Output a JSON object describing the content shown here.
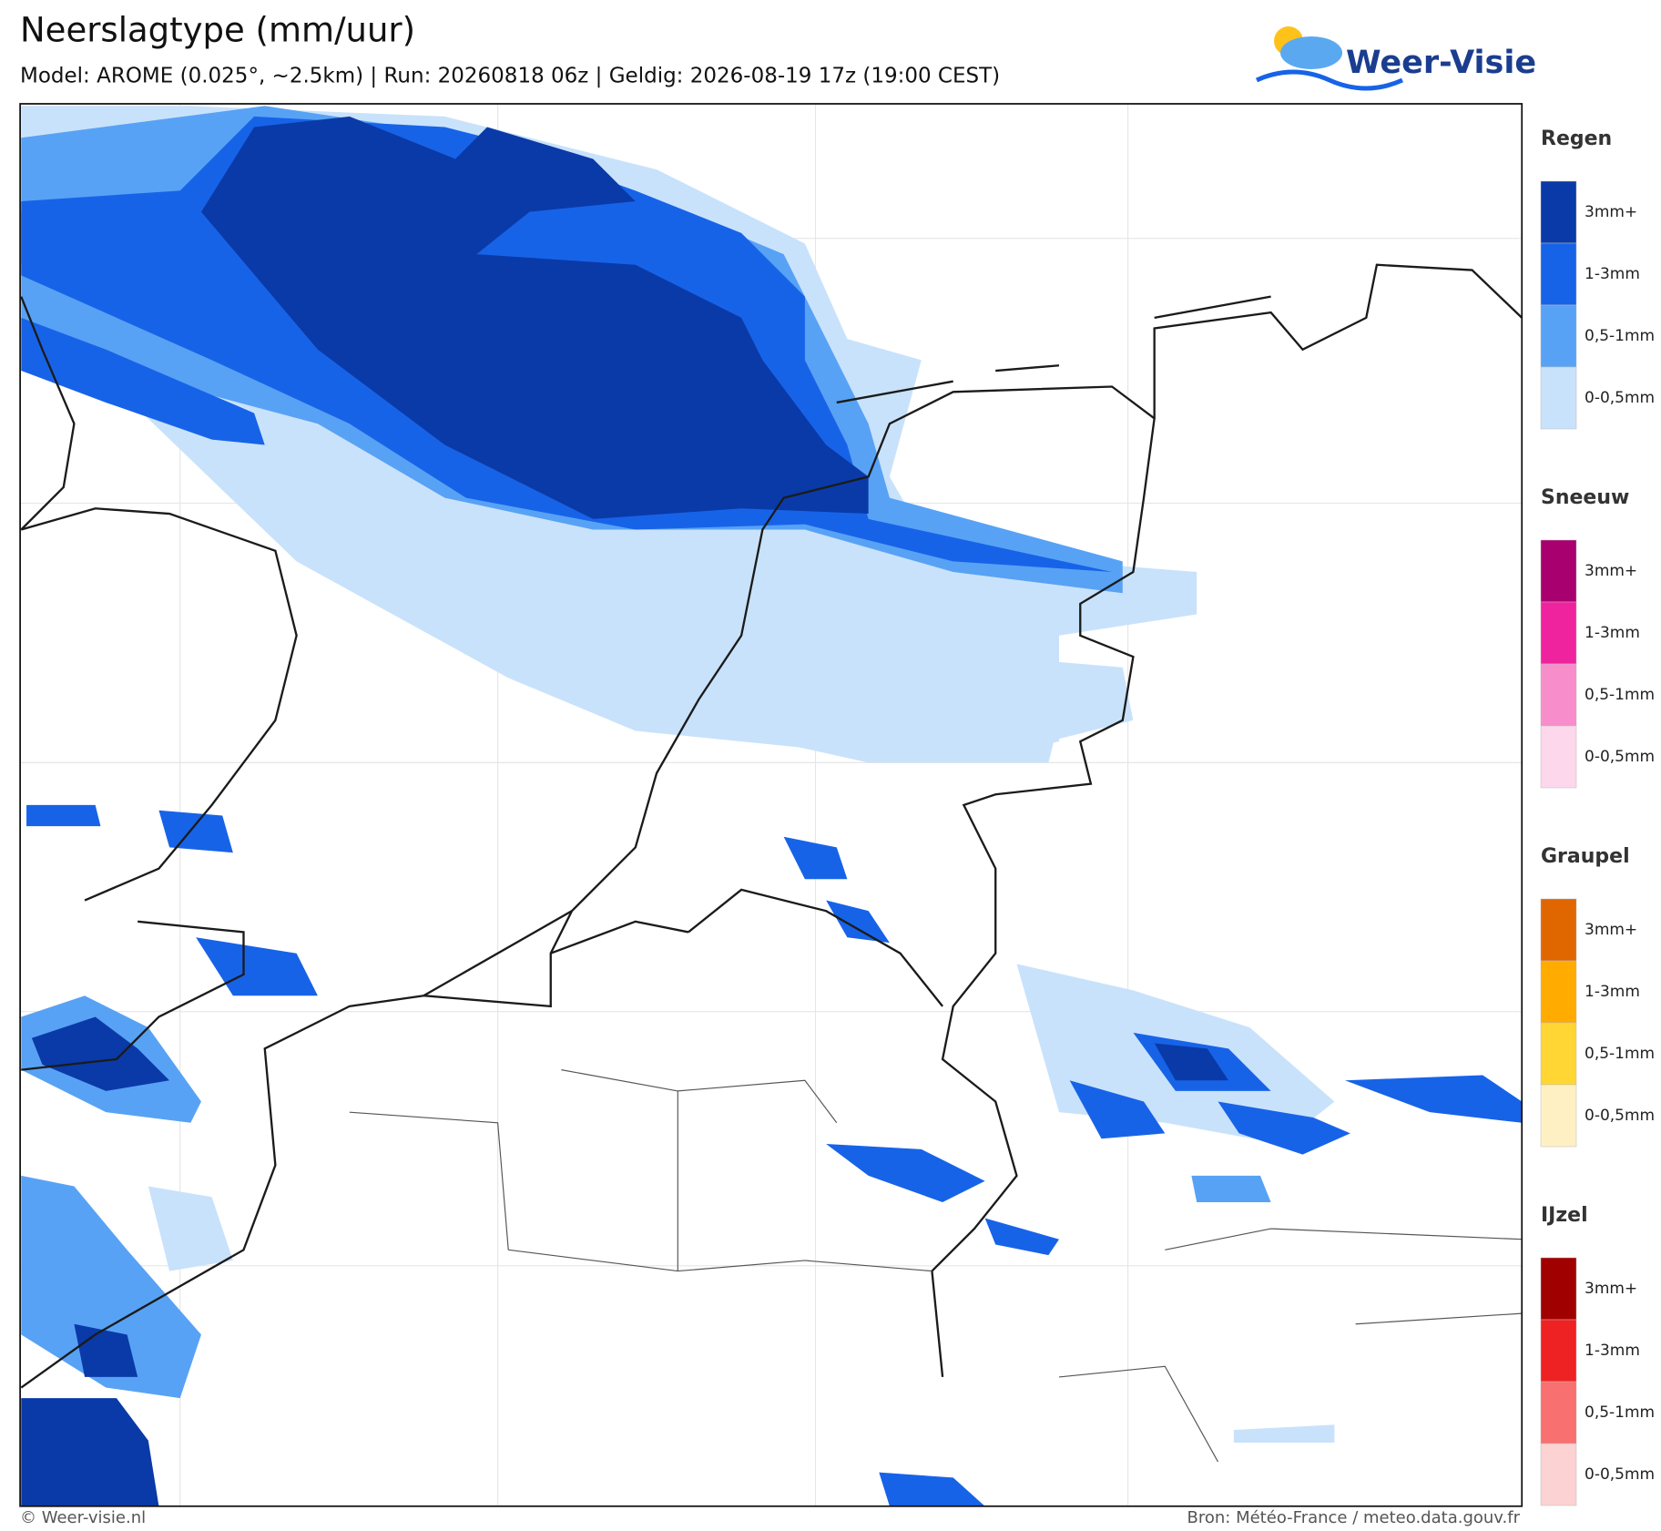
{
  "header": {
    "title": "Neerslagtype (mm/uur)",
    "subtitle": "Model: AROME (0.025°, ~2.5km)  |  Run: 20260818 06z  |  Geldig: 2026-08-19 17z (19:00 CEST)"
  },
  "logo": {
    "text": "Weer-Visie"
  },
  "legend": [
    {
      "title": "Regen",
      "items": [
        {
          "label": "3mm+",
          "color": "#0a3aa8"
        },
        {
          "label": "1-3mm",
          "color": "#1763e8"
        },
        {
          "label": "0,5-1mm",
          "color": "#58a2f5"
        },
        {
          "label": "0-0,5mm",
          "color": "#c9e2fb"
        }
      ]
    },
    {
      "title": "Sneeuw",
      "items": [
        {
          "label": "3mm+",
          "color": "#a8006e"
        },
        {
          "label": "1-3mm",
          "color": "#f0239e"
        },
        {
          "label": "0,5-1mm",
          "color": "#f78ecb"
        },
        {
          "label": "0-0,5mm",
          "color": "#fdd7ec"
        }
      ]
    },
    {
      "title": "Graupel",
      "items": [
        {
          "label": "3mm+",
          "color": "#e06600"
        },
        {
          "label": "1-3mm",
          "color": "#ffab00"
        },
        {
          "label": "0,5-1mm",
          "color": "#ffd633"
        },
        {
          "label": "0-0,5mm",
          "color": "#fff0c4"
        }
      ]
    },
    {
      "title": "IJzel",
      "items": [
        {
          "label": "3mm+",
          "color": "#a00000"
        },
        {
          "label": "1-3mm",
          "color": "#ee2222"
        },
        {
          "label": "0,5-1mm",
          "color": "#f87070"
        },
        {
          "label": "0-0,5mm",
          "color": "#fcd2d2"
        }
      ]
    }
  ],
  "footer": {
    "left": "© Weer-visie.nl",
    "right": "Bron: Météo-France / meteo.data.gouv.fr"
  }
}
